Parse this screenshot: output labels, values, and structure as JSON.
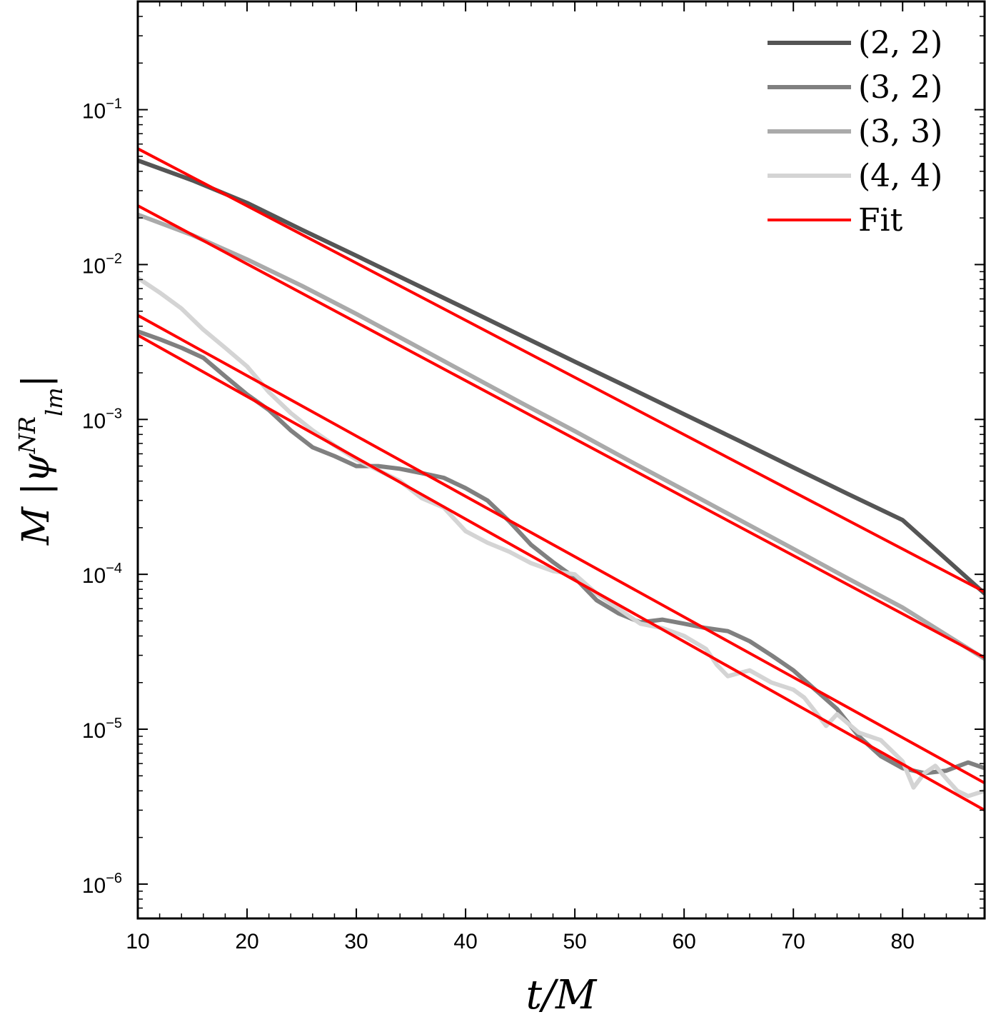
{
  "chart_data": {
    "type": "line",
    "xlabel": "t/M",
    "ylabel": "M |ψ_lm^NR|",
    "ylabel_parts": {
      "prefix": "M |ψ",
      "sub": "lm",
      "sup": "NR",
      "suffix": "|"
    },
    "xlim": [
      10,
      87.5
    ],
    "ylim": [
      6e-07,
      0.5
    ],
    "yscale": "log",
    "x_ticks": [
      10,
      20,
      30,
      40,
      50,
      60,
      70,
      80
    ],
    "x_tick_labels": [
      "10",
      "20",
      "30",
      "40",
      "50",
      "60",
      "70",
      "80"
    ],
    "y_ticks": [
      1e-06,
      1e-05,
      0.0001,
      0.001,
      0.01,
      0.1
    ],
    "y_tick_labels": [
      {
        "base": "10",
        "exp": "−6"
      },
      {
        "base": "10",
        "exp": "−5"
      },
      {
        "base": "10",
        "exp": "−4"
      },
      {
        "base": "10",
        "exp": "−3"
      },
      {
        "base": "10",
        "exp": "−2"
      },
      {
        "base": "10",
        "exp": "−1"
      }
    ],
    "grid": false,
    "legend_position": "top-right",
    "series": [
      {
        "name": "(2, 2)",
        "color": "#555555",
        "x": [
          10,
          15,
          20,
          25,
          30,
          35,
          40,
          45,
          50,
          55,
          60,
          65,
          70,
          75,
          80,
          87.5
        ],
        "y": [
          0.047,
          0.035,
          0.025,
          0.0168,
          0.0114,
          0.0077,
          0.0052,
          0.0035,
          0.00236,
          0.0016,
          0.00108,
          0.00073,
          0.00049,
          0.00033,
          0.000224,
          7.52e-05
        ]
      },
      {
        "name": "(3, 2)",
        "color": "#808080",
        "x": [
          10,
          12,
          14,
          16,
          18,
          20,
          22,
          24,
          26,
          28,
          30,
          32,
          34,
          36,
          38,
          40,
          42,
          44,
          46,
          48,
          50,
          52,
          54,
          56,
          58,
          60,
          62,
          64,
          66,
          68,
          70,
          72,
          74,
          76,
          78,
          80,
          82,
          84,
          86,
          87.5
        ],
        "y": [
          0.0037,
          0.0033,
          0.0029,
          0.0025,
          0.0019,
          0.00145,
          0.00115,
          0.00085,
          0.00066,
          0.00058,
          0.0005,
          0.0005,
          0.00048,
          0.00045,
          0.00042,
          0.00036,
          0.0003,
          0.00022,
          0.000155,
          0.00012,
          9.5e-05,
          6.8e-05,
          5.6e-05,
          4.9e-05,
          5.1e-05,
          4.8e-05,
          4.5e-05,
          4.3e-05,
          3.7e-05,
          3e-05,
          2.4e-05,
          1.8e-05,
          1.35e-05,
          9e-06,
          6.7e-06,
          5.6e-06,
          5.2e-06,
          5.4e-06,
          6.1e-06,
          5.6e-06
        ]
      },
      {
        "name": "(3, 3)",
        "color": "#aaaaaa",
        "x": [
          10,
          15,
          20,
          25,
          30,
          35,
          40,
          45,
          50,
          55,
          60,
          65,
          70,
          75,
          80,
          87.5
        ],
        "y": [
          0.021,
          0.0155,
          0.0108,
          0.0073,
          0.0048,
          0.0031,
          0.002,
          0.00129,
          0.00084,
          0.00054,
          0.00035,
          0.000226,
          0.000146,
          9.4e-05,
          6.1e-05,
          2.85e-05
        ]
      },
      {
        "name": "(4, 4)",
        "color": "#d4d4d4",
        "x": [
          10,
          12,
          14,
          16,
          18,
          20,
          22,
          24,
          26,
          28,
          30,
          32,
          34,
          36,
          38,
          40,
          42,
          44,
          46,
          48,
          50,
          52,
          54,
          56,
          58,
          60,
          62,
          63,
          64,
          65,
          66,
          68,
          70,
          71,
          72,
          73,
          74,
          76,
          78,
          80,
          81,
          82,
          83,
          84,
          85,
          86,
          87.5
        ],
        "y": [
          0.0082,
          0.0066,
          0.0052,
          0.0038,
          0.0029,
          0.0022,
          0.0015,
          0.0011,
          0.00085,
          0.00068,
          0.00055,
          0.00047,
          0.0004,
          0.00031,
          0.00027,
          0.00019,
          0.00016,
          0.00014,
          0.000118,
          0.000105,
          0.0001,
          7.5e-05,
          6e-05,
          4.8e-05,
          4.5e-05,
          4e-05,
          3.3e-05,
          2.6e-05,
          2.2e-05,
          2.3e-05,
          2.4e-05,
          2e-05,
          1.8e-05,
          1.6e-05,
          1.3e-05,
          1.05e-05,
          1.25e-05,
          9.5e-06,
          8.5e-06,
          6.2e-06,
          4.2e-06,
          5.2e-06,
          5.8e-06,
          4.8e-06,
          4e-06,
          3.7e-06,
          4e-06
        ]
      }
    ],
    "fit_series": {
      "name": "Fit",
      "color": "#ff0000",
      "lines": [
        {
          "x": [
            10,
            87.5
          ],
          "y": [
            0.056,
            7.7e-05
          ]
        },
        {
          "x": [
            10,
            87.5
          ],
          "y": [
            0.024,
            2.9e-05
          ]
        },
        {
          "x": [
            10,
            87.5
          ],
          "y": [
            0.0047,
            4.5e-06
          ]
        },
        {
          "x": [
            10,
            87.5
          ],
          "y": [
            0.0035,
            3e-06
          ]
        }
      ]
    }
  }
}
